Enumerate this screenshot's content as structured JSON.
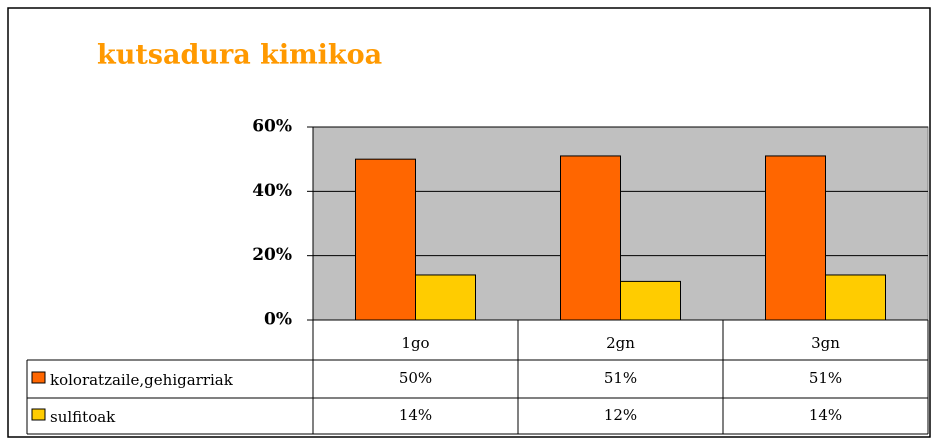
{
  "chart_data": {
    "type": "bar",
    "title": "kutsadura kimikoa",
    "categories": [
      "1go",
      "2gn",
      "3gn"
    ],
    "series": [
      {
        "name": "koloratzaile,gehigarriak",
        "color": "#FF6600",
        "values": [
          50,
          51,
          51
        ],
        "value_labels": [
          "50%",
          "51%",
          "51%"
        ]
      },
      {
        "name": "sulfitoak",
        "color": "#FFCC00",
        "values": [
          14,
          12,
          14
        ],
        "value_labels": [
          "14%",
          "12%",
          "14%"
        ]
      }
    ],
    "ylim": [
      0,
      60
    ],
    "yticks": [
      {
        "value": 0,
        "label": "0%"
      },
      {
        "value": 20,
        "label": "20%"
      },
      {
        "value": 40,
        "label": "40%"
      },
      {
        "value": 60,
        "label": "60%"
      }
    ],
    "grid": true,
    "plot_background": "#C0C0C0"
  }
}
